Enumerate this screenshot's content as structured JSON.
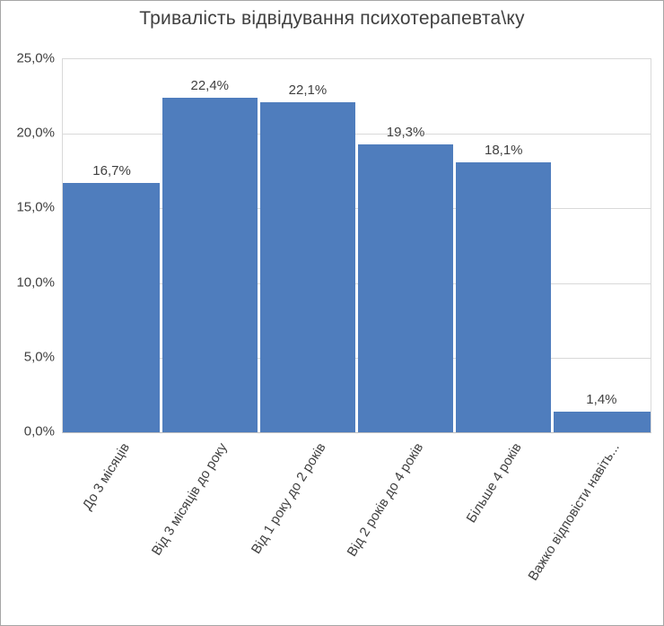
{
  "chart_data": {
    "type": "bar",
    "title": "Тривалість відвідування психотерапевта\\ку",
    "categories": [
      "До 3 місяців",
      "Від 3 місяців до року",
      "Від 1 року до 2 років",
      "Від 2 років до 4 років",
      "Більше 4 років",
      "Важко відповісти навіть..."
    ],
    "values": [
      16.7,
      22.4,
      22.1,
      19.3,
      18.1,
      1.4
    ],
    "value_labels": [
      "16,7%",
      "22,4%",
      "22,1%",
      "19,3%",
      "18,1%",
      "1,4%"
    ],
    "y_ticks": [
      {
        "value": 25,
        "label": "25,0%"
      },
      {
        "value": 20,
        "label": "20,0%"
      },
      {
        "value": 15,
        "label": "15,0%"
      },
      {
        "value": 10,
        "label": "10,0%"
      },
      {
        "value": 5,
        "label": "5,0%"
      },
      {
        "value": 0,
        "label": "0,0%"
      }
    ],
    "ylim": [
      0,
      25
    ],
    "xlabel": "",
    "ylabel": "",
    "grid": true,
    "legend": false,
    "bar_color": "#4f7dbd",
    "grid_color": "#d9d9d9",
    "axis_line_color": "#bfbfbf",
    "text_color": "#404040",
    "background": "#ffffff"
  }
}
